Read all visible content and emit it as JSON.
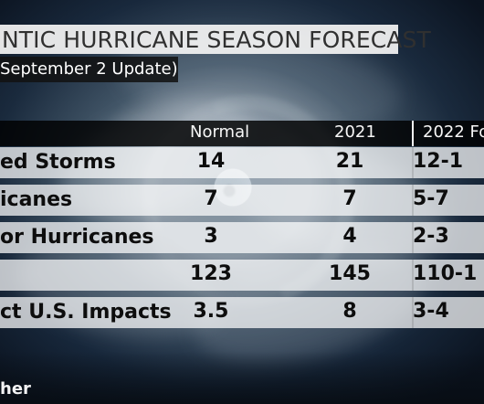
{
  "title": "NTIC HURRICANE SEASON FORECAST",
  "subtitle": "September 2 Update)",
  "table": {
    "headers": {
      "normal": "Normal",
      "year_2021": "2021",
      "forecast_2022": "2022 Fo"
    },
    "rows": [
      {
        "label": "ed Storms",
        "normal": "14",
        "year_2021": "21",
        "forecast_2022": "12-1"
      },
      {
        "label": "icanes",
        "normal": "7",
        "year_2021": "7",
        "forecast_2022": "5-7"
      },
      {
        "label": "or Hurricanes",
        "normal": "3",
        "year_2021": "4",
        "forecast_2022": "2-3"
      },
      {
        "label": "",
        "normal": "123",
        "year_2021": "145",
        "forecast_2022": "110-1"
      },
      {
        "label": "ct U.S. Impacts",
        "normal": "3.5",
        "year_2021": "8",
        "forecast_2022": "3-4"
      }
    ]
  },
  "brand": "her",
  "colors": {
    "title_band": "#f1f1f1",
    "subtitle_band": "#121212",
    "header_band": "#000000",
    "row_band": "#ffffff"
  }
}
